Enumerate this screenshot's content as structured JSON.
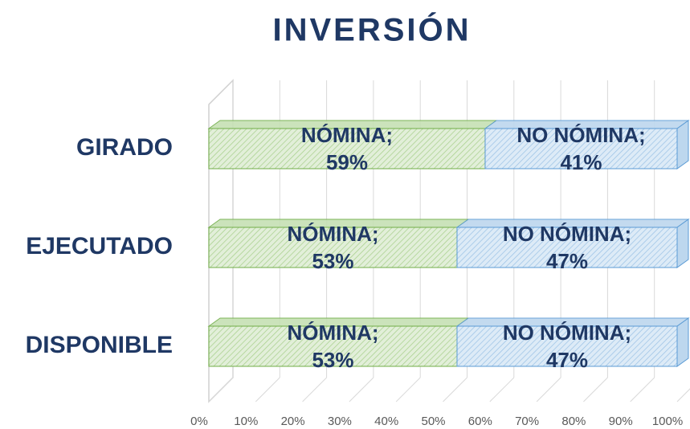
{
  "chart_data": {
    "type": "bar",
    "orientation": "horizontal",
    "stacked": true,
    "title": "INVERSIÓN",
    "categories": [
      "GIRADO",
      "EJECUTADO",
      "DISPONIBLE"
    ],
    "series": [
      {
        "name": "NÓMINA",
        "color": "#c6e0b4",
        "values": [
          59,
          53,
          53
        ],
        "value_labels": [
          "59%",
          "53%",
          "53%"
        ]
      },
      {
        "name": "NO NÓMINA",
        "color": "#bdd7ee",
        "values": [
          41,
          47,
          47
        ],
        "value_labels": [
          "41%",
          "47%",
          "47%"
        ]
      }
    ],
    "xlim": [
      0,
      100
    ],
    "xticks": [
      {
        "value": 0,
        "label": "0%"
      },
      {
        "value": 10,
        "label": "10%"
      },
      {
        "value": 20,
        "label": "20%"
      },
      {
        "value": 30,
        "label": "30%"
      },
      {
        "value": 40,
        "label": "40%"
      },
      {
        "value": 50,
        "label": "50%"
      },
      {
        "value": 60,
        "label": "60%"
      },
      {
        "value": 70,
        "label": "70%"
      },
      {
        "value": 80,
        "label": "80%"
      },
      {
        "value": 90,
        "label": "90%"
      },
      {
        "value": 100,
        "label": "100%"
      }
    ],
    "grid": true
  }
}
